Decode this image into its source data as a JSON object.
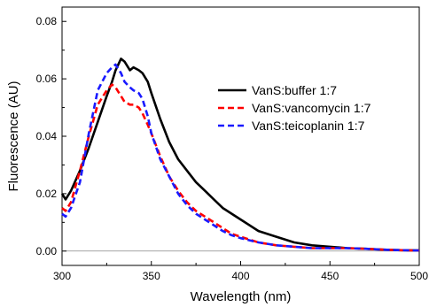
{
  "chart_data": {
    "type": "line",
    "xlabel": "Wavelength (nm)",
    "ylabel": "Fluorescence (AU)",
    "xlim": [
      300,
      500
    ],
    "ylim": [
      -0.005,
      0.085
    ],
    "xticks": [
      "300",
      "350",
      "400",
      "450",
      "500"
    ],
    "yticks": [
      "0.00",
      "0.02",
      "0.04",
      "0.06",
      "0.08"
    ],
    "zero_line": true,
    "grid": false,
    "legend_position": "upper-right",
    "series": [
      {
        "name": "VanS:buffer 1:7",
        "color": "#000000",
        "style": "solid",
        "x": [
          300,
          302,
          305,
          310,
          315,
          320,
          325,
          328,
          330,
          333,
          335,
          338,
          340,
          343,
          345,
          348,
          350,
          355,
          360,
          365,
          370,
          375,
          380,
          385,
          390,
          395,
          400,
          410,
          420,
          430,
          440,
          450,
          460,
          470,
          480,
          490,
          500
        ],
        "y": [
          0.02,
          0.018,
          0.021,
          0.028,
          0.036,
          0.045,
          0.054,
          0.059,
          0.063,
          0.067,
          0.066,
          0.063,
          0.064,
          0.063,
          0.062,
          0.059,
          0.055,
          0.046,
          0.038,
          0.032,
          0.028,
          0.024,
          0.021,
          0.018,
          0.015,
          0.013,
          0.011,
          0.007,
          0.005,
          0.003,
          0.002,
          0.0015,
          0.001,
          0.0008,
          0.0005,
          0.0003,
          0.0002
        ]
      },
      {
        "name": "VanS:vancomycin 1:7",
        "color": "#ff0000",
        "style": "dashed",
        "x": [
          300,
          302,
          305,
          310,
          315,
          320,
          325,
          328,
          330,
          333,
          335,
          338,
          340,
          343,
          345,
          348,
          350,
          355,
          360,
          365,
          370,
          375,
          380,
          385,
          390,
          395,
          400,
          410,
          420,
          430,
          440,
          450,
          460,
          470,
          480,
          490,
          500
        ],
        "y": [
          0.015,
          0.014,
          0.017,
          0.028,
          0.04,
          0.051,
          0.056,
          0.058,
          0.057,
          0.054,
          0.052,
          0.051,
          0.051,
          0.05,
          0.048,
          0.044,
          0.041,
          0.033,
          0.026,
          0.021,
          0.017,
          0.014,
          0.012,
          0.01,
          0.008,
          0.006,
          0.005,
          0.003,
          0.002,
          0.0015,
          0.001,
          0.001,
          0.001,
          0.0008,
          0.0005,
          0.0003,
          0.0002
        ]
      },
      {
        "name": "VanS:teicoplanin 1:7",
        "color": "#1a1aff",
        "style": "dashed",
        "x": [
          300,
          302,
          305,
          310,
          315,
          320,
          325,
          328,
          330,
          333,
          335,
          338,
          340,
          343,
          345,
          348,
          350,
          355,
          360,
          365,
          370,
          375,
          380,
          385,
          390,
          395,
          400,
          410,
          420,
          430,
          440,
          450,
          460,
          470,
          480,
          490,
          500
        ],
        "y": [
          0.013,
          0.012,
          0.015,
          0.024,
          0.041,
          0.056,
          0.062,
          0.064,
          0.065,
          0.062,
          0.059,
          0.057,
          0.056,
          0.055,
          0.053,
          0.047,
          0.041,
          0.032,
          0.026,
          0.02,
          0.016,
          0.013,
          0.011,
          0.009,
          0.007,
          0.0055,
          0.0045,
          0.003,
          0.002,
          0.0015,
          0.001,
          0.001,
          0.001,
          0.0008,
          0.0005,
          0.0003,
          0.0002
        ]
      }
    ]
  }
}
